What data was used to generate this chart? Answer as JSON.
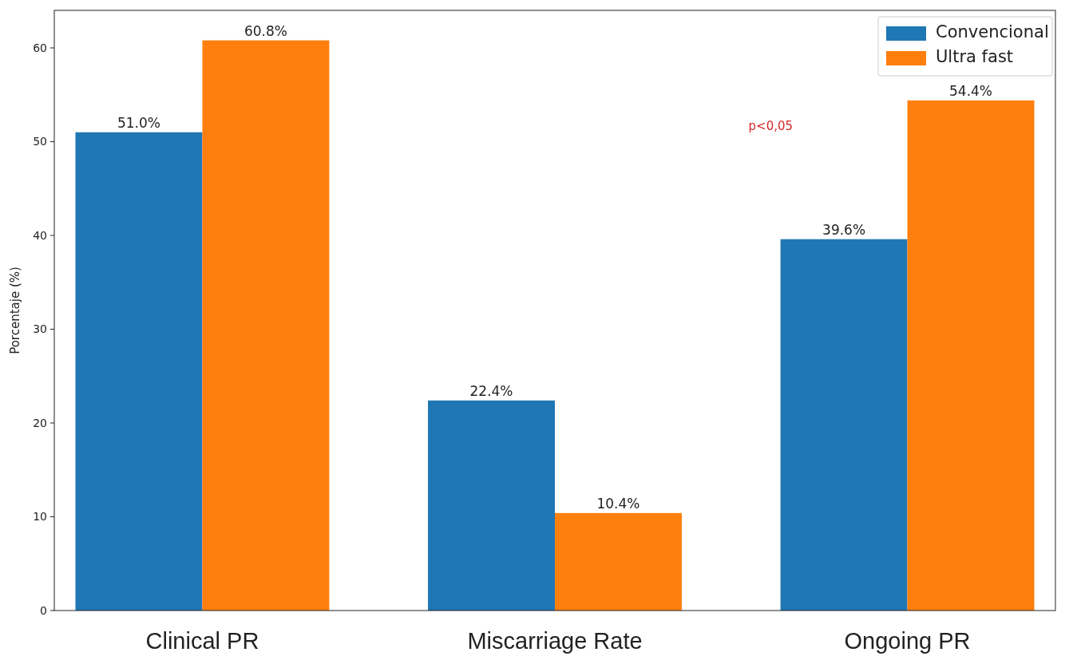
{
  "chart_data": {
    "type": "bar",
    "ylabel": "Porcentaje (%)",
    "categories": [
      "Clinical PR",
      "Miscarriage Rate",
      "Ongoing PR"
    ],
    "series": [
      {
        "name": "Convencional",
        "color": "#1f77b4",
        "values": [
          51.0,
          22.4,
          39.6
        ],
        "value_labels": [
          "51.0%",
          "22.4%",
          "39.6%"
        ]
      },
      {
        "name": "Ultra fast",
        "color": "#ff7f0e",
        "values": [
          60.8,
          10.4,
          54.4
        ],
        "value_labels": [
          "60.8%",
          "10.4%",
          "54.4%"
        ]
      }
    ],
    "ylim": [
      0,
      64
    ],
    "yticks": [
      0,
      10,
      20,
      30,
      40,
      50,
      60
    ],
    "legend": "top right",
    "grid": false,
    "annotations": [
      "p<0,05"
    ]
  }
}
